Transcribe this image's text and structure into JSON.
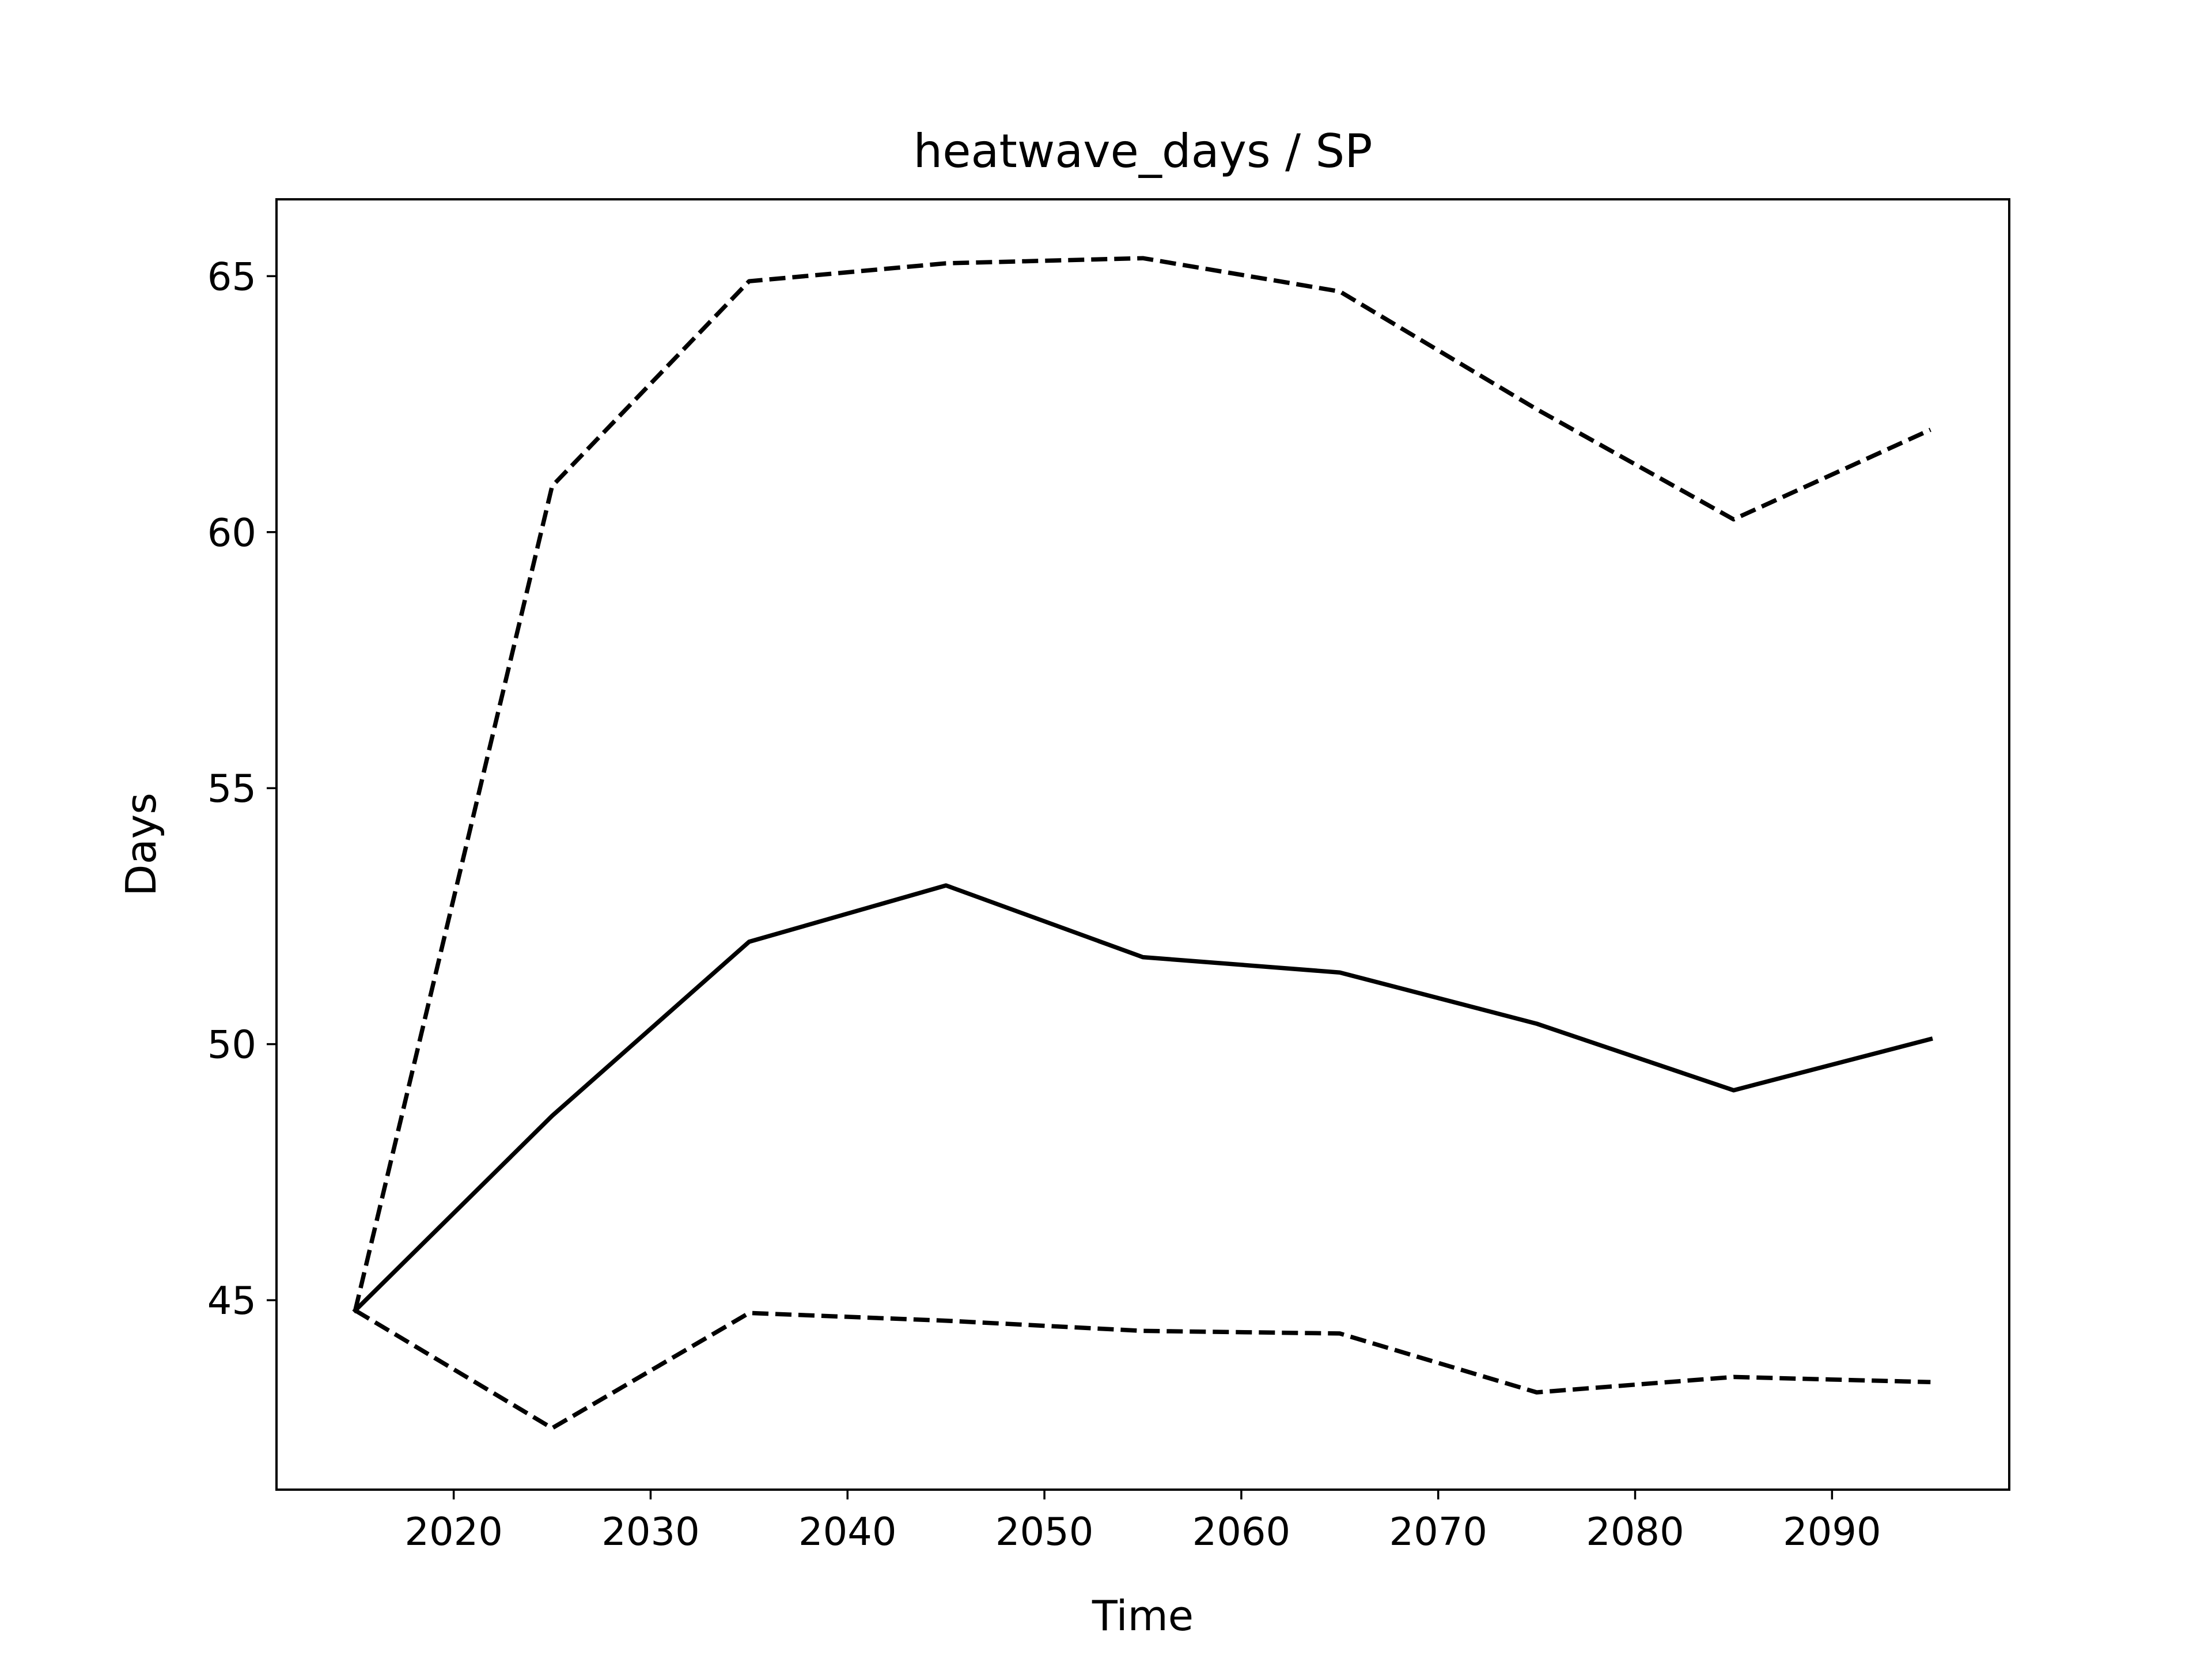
{
  "chart_data": {
    "type": "line",
    "title": "heatwave_days / SP",
    "xlabel": "Time",
    "ylabel": "Days",
    "x": [
      2015,
      2025,
      2035,
      2045,
      2055,
      2065,
      2075,
      2085,
      2095
    ],
    "series": [
      {
        "style": "solid",
        "values": [
          44.8,
          48.6,
          52.0,
          53.1,
          51.7,
          51.4,
          50.4,
          49.1,
          50.1
        ]
      },
      {
        "style": "dashed",
        "values": [
          44.8,
          60.9,
          64.9,
          65.25,
          65.35,
          64.7,
          62.4,
          60.25,
          62.0
        ]
      },
      {
        "style": "dashed",
        "values": [
          44.8,
          42.5,
          44.75,
          44.6,
          44.4,
          44.35,
          43.2,
          43.5,
          43.4
        ]
      }
    ],
    "xlim": [
      2011,
      2099
    ],
    "ylim": [
      41.3,
      66.5
    ],
    "xticks": [
      "2020",
      "2030",
      "2040",
      "2050",
      "2060",
      "2070",
      "2080",
      "2090"
    ],
    "yticks": [
      "45",
      "50",
      "55",
      "60",
      "65"
    ],
    "grid": false,
    "line_color": "#000000"
  }
}
